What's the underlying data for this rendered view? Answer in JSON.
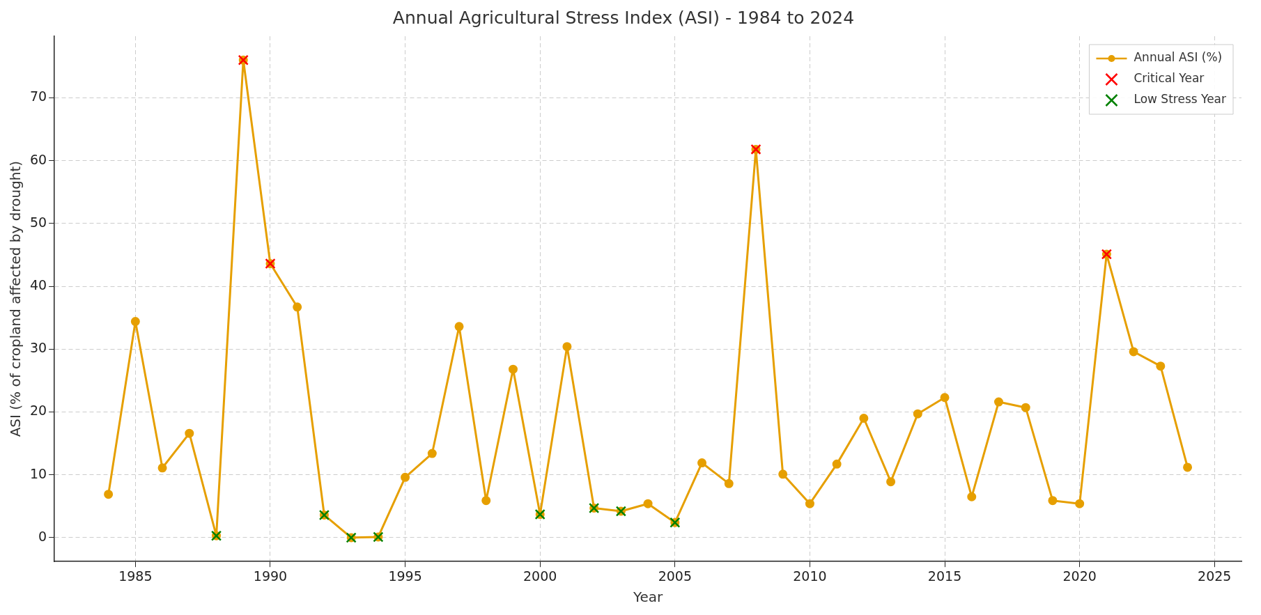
{
  "chart_data": {
    "type": "line",
    "title": "Annual Agricultural Stress Index (ASI) - 1984 to 2024",
    "xlabel": "Year",
    "ylabel": "ASI (% of cropland affected by drought)",
    "x": [
      1984,
      1985,
      1986,
      1987,
      1988,
      1989,
      1990,
      1991,
      1992,
      1993,
      1994,
      1995,
      1996,
      1997,
      1998,
      1999,
      2000,
      2001,
      2002,
      2003,
      2004,
      2005,
      2006,
      2007,
      2008,
      2009,
      2010,
      2011,
      2012,
      2013,
      2014,
      2015,
      2016,
      2017,
      2018,
      2019,
      2020,
      2021,
      2022,
      2023,
      2024
    ],
    "series": [
      {
        "name": "Annual ASI (%)",
        "color": "#e69f00",
        "marker": "circle",
        "line_style": "solid",
        "values": [
          6.9,
          34.4,
          11.1,
          16.6,
          0.3,
          76.0,
          43.6,
          36.7,
          3.6,
          0.0,
          0.1,
          9.6,
          13.4,
          33.6,
          5.9,
          26.8,
          3.7,
          30.4,
          4.7,
          4.2,
          5.4,
          2.4,
          11.9,
          8.6,
          61.8,
          10.1,
          5.4,
          11.7,
          19.0,
          8.9,
          19.7,
          22.3,
          6.5,
          21.6,
          20.7,
          5.9,
          5.4,
          45.1,
          29.6,
          27.3,
          11.2
        ]
      },
      {
        "name": "Critical Year",
        "type": "scatter",
        "color": "#ff0000",
        "marker": "cross",
        "x": [
          1989,
          1990,
          2008,
          2021
        ],
        "values": [
          76.0,
          43.6,
          61.8,
          45.1
        ]
      },
      {
        "name": "Low Stress Year",
        "type": "scatter",
        "color": "#008000",
        "marker": "cross",
        "x": [
          1988,
          1992,
          1993,
          1994,
          2000,
          2002,
          2003,
          2005
        ],
        "values": [
          0.3,
          3.6,
          0.0,
          0.1,
          3.7,
          4.7,
          4.2,
          2.4
        ]
      }
    ],
    "xlim": [
      1982,
      2026
    ],
    "xticks": [
      1985,
      1990,
      1995,
      2000,
      2005,
      2010,
      2015,
      2020,
      2025
    ],
    "ylim": [
      -3.8,
      79.8
    ],
    "yticks": [
      0,
      10,
      20,
      30,
      40,
      50,
      60,
      70
    ],
    "grid": true,
    "legend": "top right"
  }
}
